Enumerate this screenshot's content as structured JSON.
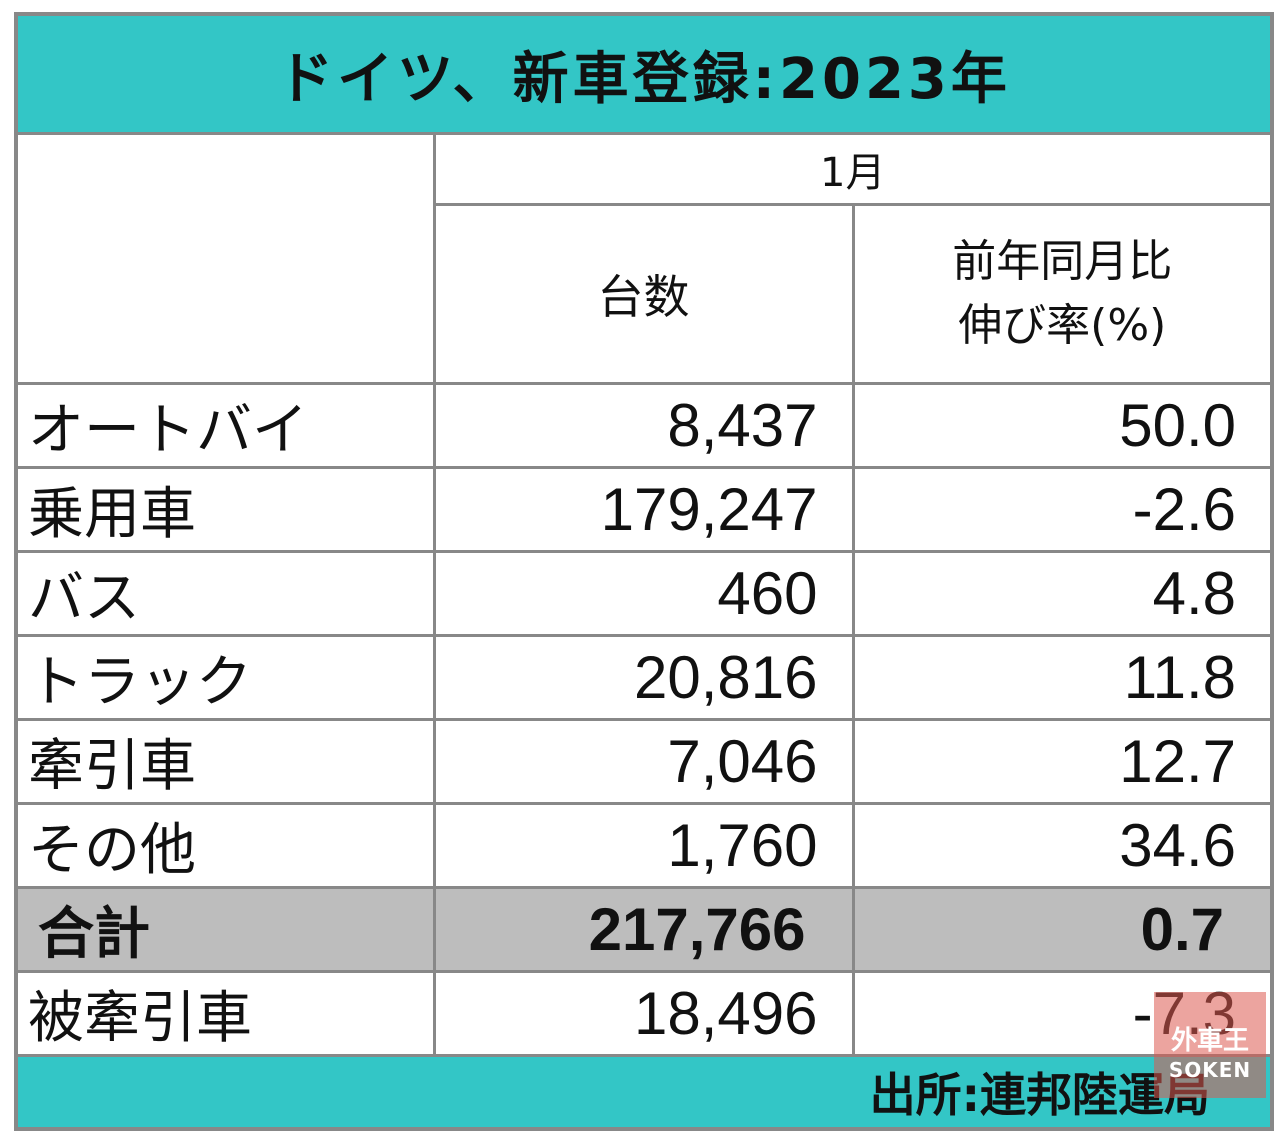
{
  "title": "ドイツ、新車登録:2023年",
  "month_header": "1月",
  "column_headers": {
    "units": "台数",
    "change_line1": "前年同月比",
    "change_line2": "伸び率(%)"
  },
  "rows": [
    {
      "label": "オートバイ",
      "units": "8,437",
      "change": "50.0"
    },
    {
      "label": "乗用車",
      "units": "179,247",
      "change": "-2.6"
    },
    {
      "label": "バス",
      "units": "460",
      "change": "4.8"
    },
    {
      "label": "トラック",
      "units": "20,816",
      "change": "11.8"
    },
    {
      "label": "牽引車",
      "units": "7,046",
      "change": "12.7"
    },
    {
      "label": "その他",
      "units": "1,760",
      "change": "34.6"
    }
  ],
  "total": {
    "label": "合計",
    "units": "217,766",
    "change": "0.7"
  },
  "trailer": {
    "label": "被牽引車",
    "units": "18,496",
    "change": "-7.3"
  },
  "source": "出所:連邦陸運局",
  "watermark": {
    "top": "外車王",
    "bottom": "SOKEN"
  },
  "colors": {
    "header_band": "#33c6c6",
    "total_row": "#bdbdbd",
    "border": "#888888"
  }
}
